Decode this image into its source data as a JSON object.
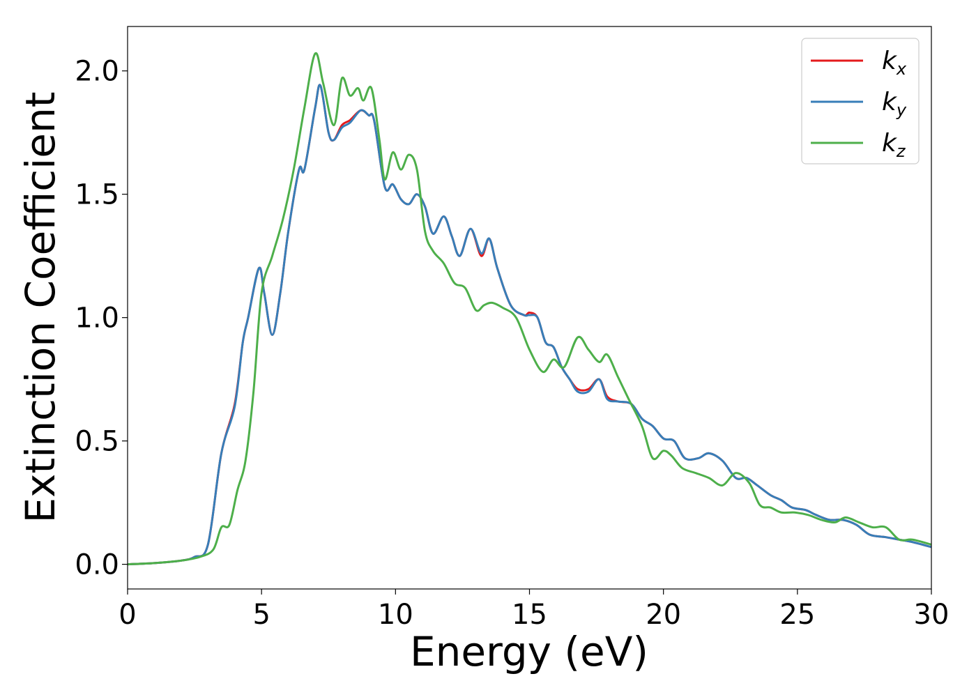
{
  "chart_data": {
    "type": "line",
    "xlabel": "Energy (eV)",
    "ylabel": "Extinction Coefficient",
    "xlim": [
      0,
      30
    ],
    "ylim": [
      -0.1,
      2.18
    ],
    "xticks": [
      0,
      5,
      10,
      15,
      20,
      25,
      30
    ],
    "yticks": [
      0.0,
      0.5,
      1.0,
      1.5,
      2.0
    ],
    "xtick_labels": [
      "0",
      "5",
      "10",
      "15",
      "20",
      "25",
      "30"
    ],
    "ytick_labels": [
      "0.0",
      "0.5",
      "1.0",
      "1.5",
      "2.0"
    ],
    "grid": false,
    "legend_position": "top-right",
    "colors": {
      "kx": "#e41a1c",
      "ky": "#377eb8",
      "kz": "#4daf4a"
    },
    "series": [
      {
        "name": "k_x",
        "name_base": "k",
        "name_sub": "x",
        "color": "#e41a1c",
        "x": [
          0,
          1,
          2,
          2.5,
          3,
          3.5,
          4,
          4.3,
          4.5,
          4.9,
          5.1,
          5.4,
          5.7,
          6.0,
          6.4,
          6.6,
          7.0,
          7.2,
          7.5,
          7.7,
          8.0,
          8.3,
          8.7,
          9.0,
          9.2,
          9.6,
          9.9,
          10.2,
          10.5,
          10.8,
          11.1,
          11.4,
          11.8,
          12.1,
          12.4,
          12.8,
          13.2,
          13.5,
          13.8,
          14.3,
          14.8,
          15.0,
          15.3,
          15.6,
          15.9,
          16.2,
          16.5,
          16.8,
          17.2,
          17.6,
          17.9,
          18.3,
          18.8,
          19.2,
          19.6,
          20.0,
          20.4,
          20.8,
          21.3,
          21.7,
          22.2,
          22.7,
          23.1,
          23.5,
          24.0,
          24.4,
          24.8,
          25.3,
          25.7,
          26.2,
          26.7,
          27.2,
          27.7,
          28.3,
          28.8,
          29.3,
          30.0
        ],
        "values": [
          0.0,
          0.005,
          0.015,
          0.03,
          0.08,
          0.45,
          0.65,
          0.9,
          1.0,
          1.2,
          1.1,
          0.93,
          1.1,
          1.35,
          1.6,
          1.6,
          1.85,
          1.94,
          1.75,
          1.72,
          1.78,
          1.8,
          1.84,
          1.82,
          1.8,
          1.53,
          1.54,
          1.48,
          1.46,
          1.5,
          1.45,
          1.34,
          1.41,
          1.33,
          1.25,
          1.36,
          1.25,
          1.32,
          1.2,
          1.05,
          1.01,
          1.02,
          1.0,
          0.9,
          0.88,
          0.8,
          0.75,
          0.71,
          0.71,
          0.75,
          0.68,
          0.66,
          0.65,
          0.59,
          0.56,
          0.51,
          0.5,
          0.43,
          0.43,
          0.45,
          0.42,
          0.35,
          0.35,
          0.32,
          0.28,
          0.26,
          0.23,
          0.22,
          0.2,
          0.18,
          0.18,
          0.16,
          0.12,
          0.11,
          0.1,
          0.09,
          0.07
        ]
      },
      {
        "name": "k_y",
        "name_base": "k",
        "name_sub": "y",
        "color": "#377eb8",
        "x": [
          0,
          1,
          2,
          2.5,
          3,
          3.5,
          4,
          4.3,
          4.5,
          4.9,
          5.1,
          5.4,
          5.7,
          6.0,
          6.4,
          6.6,
          7.0,
          7.2,
          7.5,
          7.7,
          8.0,
          8.3,
          8.7,
          9.0,
          9.2,
          9.6,
          9.9,
          10.2,
          10.5,
          10.8,
          11.1,
          11.4,
          11.8,
          12.1,
          12.4,
          12.8,
          13.2,
          13.5,
          13.8,
          14.3,
          14.8,
          15.0,
          15.3,
          15.6,
          15.9,
          16.2,
          16.5,
          16.8,
          17.2,
          17.6,
          17.9,
          18.3,
          18.8,
          19.2,
          19.6,
          20.0,
          20.4,
          20.8,
          21.3,
          21.7,
          22.2,
          22.7,
          23.1,
          23.5,
          24.0,
          24.4,
          24.8,
          25.3,
          25.7,
          26.2,
          26.7,
          27.2,
          27.7,
          28.3,
          28.8,
          29.3,
          30.0
        ],
        "values": [
          0.0,
          0.005,
          0.015,
          0.03,
          0.08,
          0.45,
          0.64,
          0.9,
          1.0,
          1.2,
          1.1,
          0.93,
          1.1,
          1.35,
          1.6,
          1.6,
          1.85,
          1.94,
          1.75,
          1.72,
          1.77,
          1.79,
          1.84,
          1.82,
          1.8,
          1.53,
          1.54,
          1.48,
          1.46,
          1.5,
          1.45,
          1.34,
          1.41,
          1.33,
          1.25,
          1.36,
          1.26,
          1.32,
          1.2,
          1.05,
          1.01,
          1.01,
          1.0,
          0.9,
          0.88,
          0.8,
          0.75,
          0.7,
          0.7,
          0.75,
          0.67,
          0.66,
          0.65,
          0.59,
          0.56,
          0.51,
          0.5,
          0.43,
          0.43,
          0.45,
          0.42,
          0.35,
          0.35,
          0.32,
          0.28,
          0.26,
          0.23,
          0.22,
          0.2,
          0.18,
          0.18,
          0.16,
          0.12,
          0.11,
          0.1,
          0.09,
          0.07
        ]
      },
      {
        "name": "k_z",
        "name_base": "k",
        "name_sub": "z",
        "color": "#4daf4a",
        "x": [
          0,
          1,
          2,
          2.7,
          3.2,
          3.5,
          3.8,
          4.1,
          4.4,
          4.7,
          5.0,
          5.4,
          5.8,
          6.2,
          6.6,
          7.0,
          7.3,
          7.7,
          8.0,
          8.3,
          8.6,
          8.8,
          9.1,
          9.4,
          9.6,
          9.9,
          10.2,
          10.5,
          10.8,
          11.1,
          11.4,
          11.8,
          12.2,
          12.6,
          13.0,
          13.3,
          13.6,
          14.0,
          14.5,
          15.0,
          15.5,
          15.9,
          16.3,
          16.8,
          17.2,
          17.6,
          17.9,
          18.3,
          18.7,
          19.2,
          19.6,
          20.0,
          20.3,
          20.7,
          21.2,
          21.7,
          22.2,
          22.7,
          23.2,
          23.6,
          24.0,
          24.4,
          24.9,
          25.4,
          25.9,
          26.4,
          26.8,
          27.3,
          27.8,
          28.3,
          28.8,
          29.3,
          30.0
        ],
        "values": [
          0.0,
          0.005,
          0.015,
          0.03,
          0.06,
          0.15,
          0.16,
          0.3,
          0.42,
          0.7,
          1.1,
          1.25,
          1.4,
          1.6,
          1.85,
          2.07,
          1.95,
          1.78,
          1.97,
          1.9,
          1.93,
          1.88,
          1.93,
          1.72,
          1.56,
          1.67,
          1.6,
          1.66,
          1.6,
          1.35,
          1.27,
          1.22,
          1.14,
          1.12,
          1.03,
          1.05,
          1.06,
          1.04,
          1.0,
          0.87,
          0.78,
          0.83,
          0.8,
          0.92,
          0.87,
          0.82,
          0.85,
          0.76,
          0.67,
          0.56,
          0.43,
          0.46,
          0.44,
          0.39,
          0.37,
          0.35,
          0.32,
          0.37,
          0.33,
          0.24,
          0.23,
          0.21,
          0.21,
          0.2,
          0.18,
          0.17,
          0.19,
          0.17,
          0.15,
          0.15,
          0.1,
          0.1,
          0.08
        ]
      }
    ]
  }
}
